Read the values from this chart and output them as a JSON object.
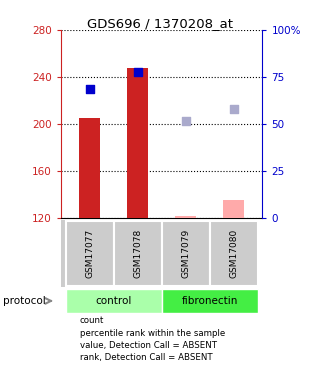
{
  "title": "GDS696 / 1370208_at",
  "samples": [
    "GSM17077",
    "GSM17078",
    "GSM17079",
    "GSM17080"
  ],
  "ylim_left": [
    120,
    280
  ],
  "yticks_left": [
    120,
    160,
    200,
    240,
    280
  ],
  "ytick_labels_left": [
    "120",
    "160",
    "200",
    "240",
    "280"
  ],
  "ytick_labels_right": [
    "0",
    "25",
    "50",
    "75",
    "100%"
  ],
  "bar_values": [
    205,
    248,
    121,
    135
  ],
  "bar_colors": [
    "#cc2222",
    "#cc2222",
    "#ffaaaa",
    "#ffaaaa"
  ],
  "bar_bottom": 120,
  "bar_width": 0.45,
  "point_values": [
    230,
    244,
    202,
    213
  ],
  "point_colors": [
    "#0000cc",
    "#0000cc",
    "#aaaacc",
    "#aaaacc"
  ],
  "point_size": 28,
  "legend_items": [
    {
      "color": "#cc2222",
      "label": "count"
    },
    {
      "color": "#0000cc",
      "label": "percentile rank within the sample"
    },
    {
      "color": "#ffaaaa",
      "label": "value, Detection Call = ABSENT"
    },
    {
      "color": "#aaaacc",
      "label": "rank, Detection Call = ABSENT"
    }
  ],
  "control_color": "#aaffaa",
  "fibronectin_color": "#44ee44",
  "sample_bg": "#cccccc",
  "background_color": "#ffffff"
}
